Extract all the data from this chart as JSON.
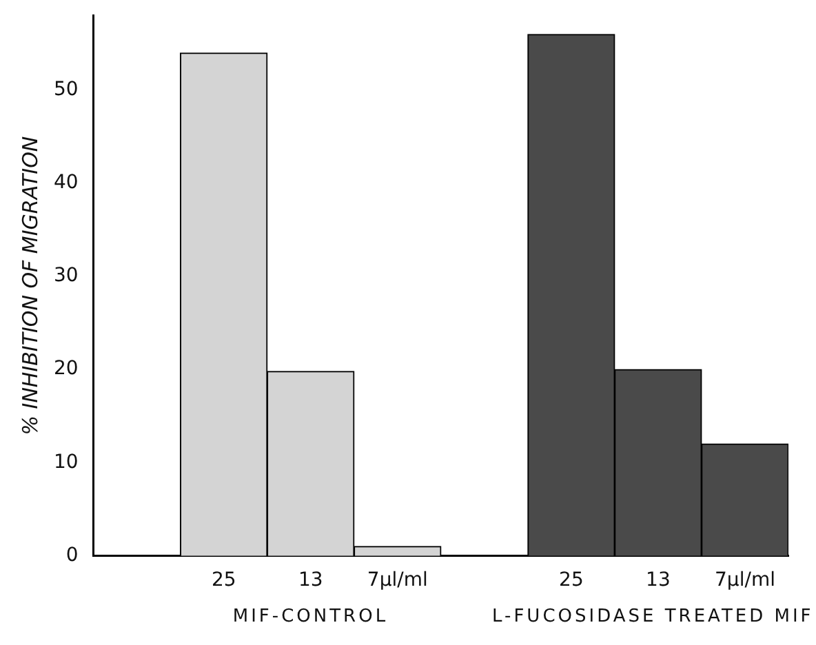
{
  "chart_data": {
    "type": "bar",
    "ylabel": "% INHIBITION OF MIGRATION",
    "categories": [
      null,
      "25",
      "13",
      "7µl/ml",
      null,
      "25",
      "13",
      "7µl/ml"
    ],
    "values": [
      null,
      54,
      19.8,
      1,
      null,
      56,
      20,
      12
    ],
    "colors": [
      "#ffffff",
      "#d4d4d4",
      "#d4d4d4",
      "#d4d4d4",
      "#ffffff",
      "#4a4a4a",
      "#4a4a4a",
      "#4a4a4a"
    ],
    "ylim": [
      0,
      58
    ],
    "yticks": [
      0,
      10,
      20,
      30,
      40,
      50
    ],
    "grid": false,
    "legend": false,
    "annotations": [
      "MIF-CONTROL",
      "L-FUCOSIDASE TREATED MIF"
    ]
  }
}
